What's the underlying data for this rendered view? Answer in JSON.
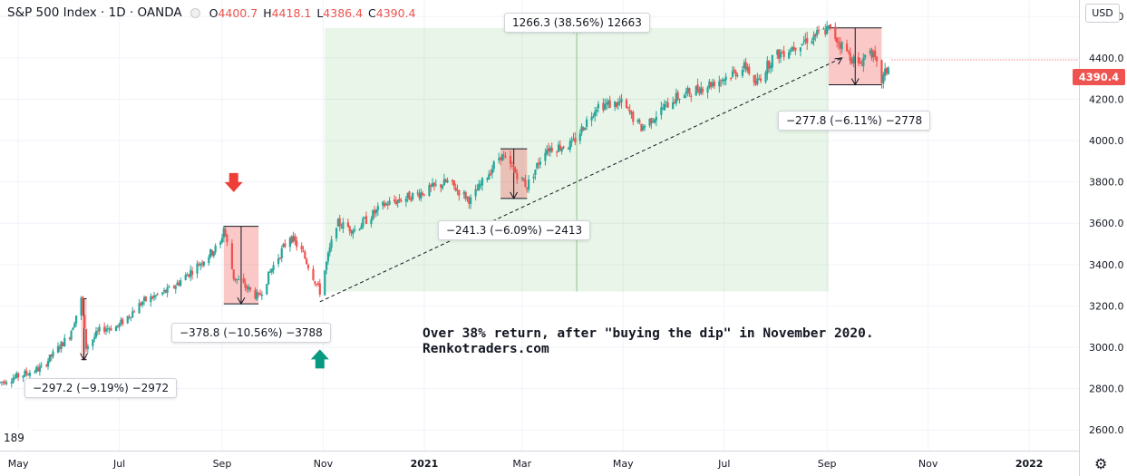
{
  "header": {
    "symbol": "S&P 500 Index · 1D · OANDA",
    "ohlc": [
      {
        "key": "O",
        "value": "4400.7"
      },
      {
        "key": "H",
        "value": "4418.1"
      },
      {
        "key": "L",
        "value": "4386.4"
      },
      {
        "key": "C",
        "value": "4390.4"
      }
    ]
  },
  "currency_button": "USD",
  "last_price": "4390.4",
  "left_partial_value": "189",
  "annotation": {
    "line1": "Over 38% return, after \"buying the dip\" in November 2020.",
    "line2": "Renkotraders.com"
  },
  "chart_data": {
    "type": "candlestick",
    "ylim": [
      2500,
      4680
    ],
    "y_ticks": [
      2600,
      2800,
      3000,
      3200,
      3400,
      3600,
      3800,
      4000,
      4200,
      4400,
      4600
    ],
    "y_tick_labels": [
      "2600.0",
      "2800.0",
      "3000.0",
      "3200.0",
      "3400.0",
      "3600.0",
      "3800.0",
      "4000.0",
      "4200.0",
      "4400.0",
      "4600.0"
    ],
    "x_range": [
      "2020-04-20",
      "2022-01-31"
    ],
    "x_ticks": [
      {
        "date": "2020-05-01",
        "label": "May",
        "bold": false
      },
      {
        "date": "2020-07-01",
        "label": "Jul",
        "bold": false
      },
      {
        "date": "2020-09-01",
        "label": "Sep",
        "bold": false
      },
      {
        "date": "2020-11-01",
        "label": "Nov",
        "bold": false
      },
      {
        "date": "2021-01-01",
        "label": "2021",
        "bold": true
      },
      {
        "date": "2021-03-01",
        "label": "Mar",
        "bold": false
      },
      {
        "date": "2021-05-01",
        "label": "May",
        "bold": false
      },
      {
        "date": "2021-07-01",
        "label": "Jul",
        "bold": false
      },
      {
        "date": "2021-09-01",
        "label": "Sep",
        "bold": false
      },
      {
        "date": "2021-11-01",
        "label": "Nov",
        "bold": false
      },
      {
        "date": "2022-01-01",
        "label": "2022",
        "bold": true
      }
    ],
    "price_path": [
      [
        "2020-04-20",
        2830
      ],
      [
        "2020-05-01",
        2860
      ],
      [
        "2020-05-15",
        2900
      ],
      [
        "2020-06-01",
        3060
      ],
      [
        "2020-06-08",
        3230
      ],
      [
        "2020-06-11",
        3000
      ],
      [
        "2020-06-20",
        3090
      ],
      [
        "2020-06-30",
        3100
      ],
      [
        "2020-07-15",
        3220
      ],
      [
        "2020-08-01",
        3280
      ],
      [
        "2020-08-15",
        3380
      ],
      [
        "2020-08-31",
        3500
      ],
      [
        "2020-09-02",
        3580
      ],
      [
        "2020-09-08",
        3340
      ],
      [
        "2020-09-23",
        3240
      ],
      [
        "2020-10-01",
        3380
      ],
      [
        "2020-10-12",
        3540
      ],
      [
        "2020-10-20",
        3450
      ],
      [
        "2020-10-30",
        3270
      ],
      [
        "2020-11-04",
        3440
      ],
      [
        "2020-11-09",
        3600
      ],
      [
        "2020-11-20",
        3570
      ],
      [
        "2020-12-08",
        3690
      ],
      [
        "2020-12-31",
        3750
      ],
      [
        "2021-01-15",
        3800
      ],
      [
        "2021-01-29",
        3710
      ],
      [
        "2021-02-16",
        3930
      ],
      [
        "2021-03-04",
        3780
      ],
      [
        "2021-03-15",
        3960
      ],
      [
        "2021-03-31",
        3980
      ],
      [
        "2021-04-15",
        4170
      ],
      [
        "2021-04-30",
        4180
      ],
      [
        "2021-05-12",
        4060
      ],
      [
        "2021-05-31",
        4200
      ],
      [
        "2021-06-15",
        4250
      ],
      [
        "2021-06-30",
        4300
      ],
      [
        "2021-07-15",
        4360
      ],
      [
        "2021-07-19",
        4260
      ],
      [
        "2021-07-30",
        4400
      ],
      [
        "2021-08-15",
        4470
      ],
      [
        "2021-09-02",
        4540
      ],
      [
        "2021-09-20",
        4360
      ],
      [
        "2021-09-27",
        4450
      ],
      [
        "2021-10-04",
        4290
      ],
      [
        "2021-10-10",
        4390
      ]
    ],
    "shaded_ranges": [
      {
        "start": "2020-11-02",
        "end": "2021-09-02",
        "low": 3270,
        "high": 4545,
        "color": "#4caf50",
        "label": "1266.3 (38.56%) 12663",
        "direction": "up"
      },
      {
        "start": "2020-06-08",
        "end": "2020-06-11",
        "low": 2940,
        "high": 3235,
        "color": "#ef5350",
        "label": "−297.2 (−9.19%) −2972",
        "direction": "down"
      },
      {
        "start": "2020-09-02",
        "end": "2020-09-23",
        "low": 3210,
        "high": 3585,
        "color": "#ef5350",
        "label": "−378.8 (−10.56%) −3788",
        "direction": "down"
      },
      {
        "start": "2021-02-16",
        "end": "2021-03-04",
        "low": 3720,
        "high": 3960,
        "color": "#ef5350",
        "label": "−241.3 (−6.09%) −2413",
        "direction": "down"
      },
      {
        "start": "2021-09-02",
        "end": "2021-10-04",
        "low": 4270,
        "high": 4545,
        "color": "#ef5350",
        "label": "−277.8 (−6.11%) −2778",
        "direction": "down"
      }
    ],
    "trend_line": {
      "from": [
        "2020-10-30",
        3220
      ],
      "to": [
        "2021-09-10",
        4400
      ],
      "style": "dashed"
    },
    "markers": [
      {
        "date": "2020-09-08",
        "price": 3790,
        "type": "sell-arrow",
        "color": "#ef3e36"
      },
      {
        "date": "2020-10-30",
        "price": 2950,
        "type": "buy-arrow",
        "color": "#089981"
      }
    ],
    "up_color": "#26a69a",
    "down_color": "#ef5350",
    "last_price": 4390.4
  }
}
